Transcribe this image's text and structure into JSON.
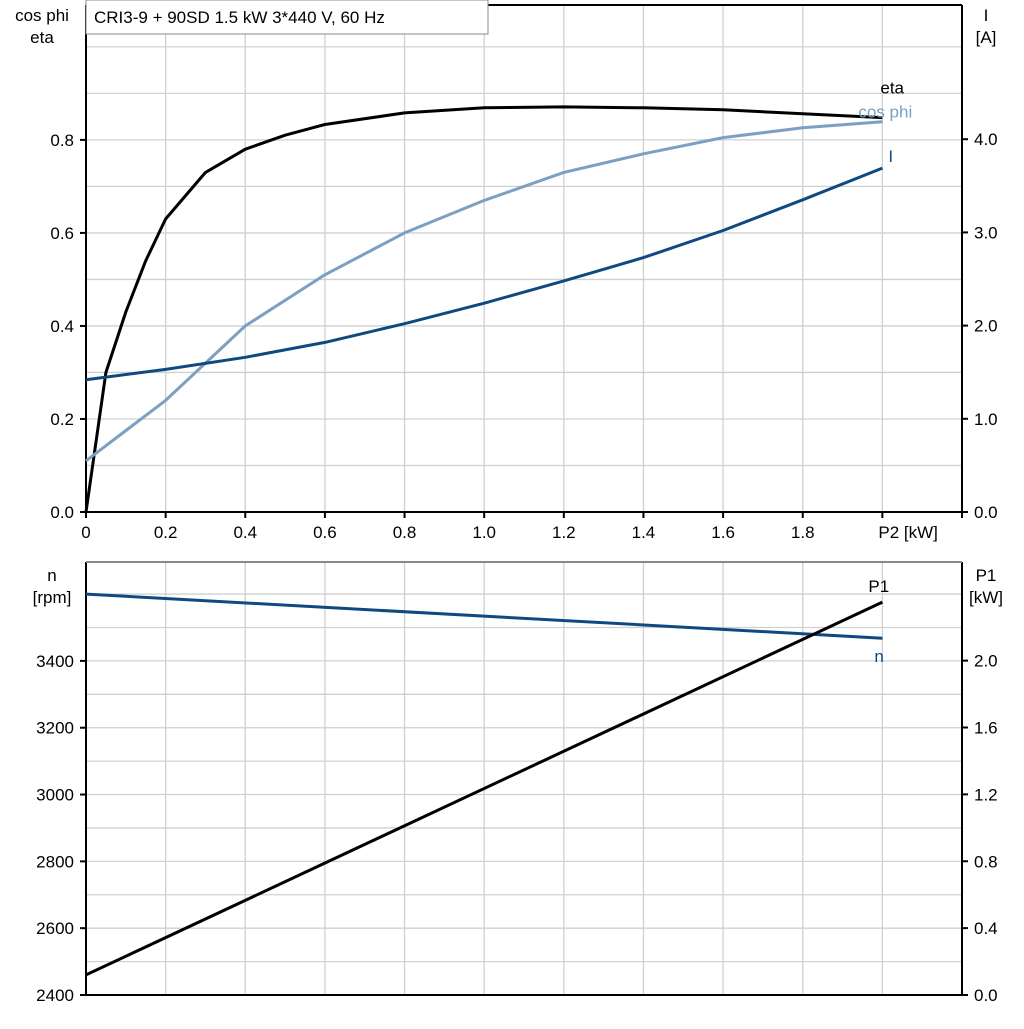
{
  "title": "CRI3-9 + 90SD   1.5 kW   3*440 V, 60 Hz",
  "chart_data": [
    {
      "type": "line",
      "xlabel": "P2 [kW]",
      "x_ticks": [
        "0",
        "0.2",
        "0.4",
        "0.6",
        "0.8",
        "1.0",
        "1.2",
        "1.4",
        "1.6",
        "1.8"
      ],
      "xlim": [
        0,
        2.2
      ],
      "ylabel_left": [
        "cos phi",
        "eta"
      ],
      "ylim_left": [
        0,
        1.09
      ],
      "yticks_left": [
        "0.0",
        "0.2",
        "0.4",
        "0.6",
        "0.8"
      ],
      "ylabel_right": [
        "I",
        "[A]"
      ],
      "ylim_right": [
        0,
        5.44
      ],
      "yticks_right": [
        "0.0",
        "1.0",
        "2.0",
        "3.0",
        "4.0"
      ],
      "grid": true,
      "series": [
        {
          "name": "eta",
          "axis": "left",
          "color": "#000000",
          "x": [
            0,
            0.05,
            0.1,
            0.15,
            0.2,
            0.3,
            0.4,
            0.5,
            0.6,
            0.8,
            1.0,
            1.2,
            1.4,
            1.6,
            1.8,
            2.0
          ],
          "y": [
            0,
            0.3,
            0.43,
            0.54,
            0.63,
            0.73,
            0.78,
            0.81,
            0.833,
            0.858,
            0.869,
            0.871,
            0.869,
            0.865,
            0.856,
            0.848
          ]
        },
        {
          "name": "cos phi",
          "axis": "left",
          "color": "#7ba0c2",
          "x": [
            0,
            0.2,
            0.4,
            0.6,
            0.8,
            1.0,
            1.2,
            1.4,
            1.6,
            1.8,
            2.0
          ],
          "y": [
            0.11,
            0.24,
            0.4,
            0.51,
            0.6,
            0.67,
            0.73,
            0.77,
            0.805,
            0.826,
            0.839
          ]
        },
        {
          "name": "I",
          "axis": "right",
          "color": "#0e4a80",
          "x": [
            0,
            0.2,
            0.4,
            0.6,
            0.8,
            1.0,
            1.2,
            1.4,
            1.6,
            1.8,
            2.0
          ],
          "y": [
            1.42,
            1.53,
            1.66,
            1.82,
            2.02,
            2.24,
            2.48,
            2.73,
            3.02,
            3.35,
            3.69
          ]
        }
      ]
    },
    {
      "type": "line",
      "xlim": [
        0,
        2.2
      ],
      "ylabel_left": [
        "n",
        "[rpm]"
      ],
      "ylim_left": [
        2400,
        3696
      ],
      "yticks_left": [
        "2400",
        "2600",
        "2800",
        "3000",
        "3200",
        "3400"
      ],
      "ylabel_right": [
        "P1",
        "[kW]"
      ],
      "ylim_right": [
        0,
        2.59
      ],
      "yticks_right": [
        "0.0",
        "0.4",
        "0.8",
        "1.2",
        "1.6",
        "2.0"
      ],
      "grid": true,
      "series": [
        {
          "name": "n",
          "axis": "left",
          "color": "#0e4a80",
          "x": [
            0,
            2.0
          ],
          "y": [
            3600,
            3468
          ]
        },
        {
          "name": "P1",
          "axis": "right",
          "color": "#000000",
          "x": [
            0,
            2.0
          ],
          "y": [
            0.12,
            2.35
          ]
        }
      ]
    }
  ]
}
